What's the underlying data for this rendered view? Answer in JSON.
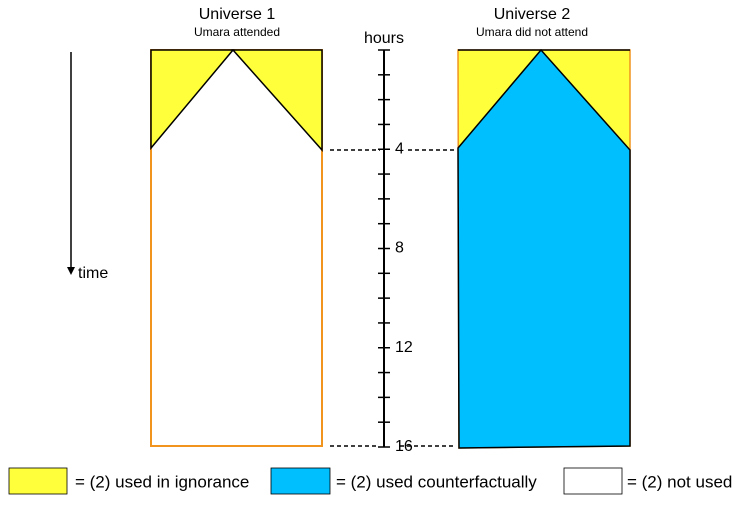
{
  "universes": [
    {
      "title": "Universe 1",
      "subtitle": "Umara attended"
    },
    {
      "title": "Universe 2",
      "subtitle": "Umara did not attend"
    }
  ],
  "axis": {
    "label": "hours",
    "tick_labels": [
      "4",
      "8",
      "12",
      "16"
    ]
  },
  "time_label": "time",
  "legend": [
    {
      "label": "= (2) used in ignorance"
    },
    {
      "label": "= (2) used counterfactually"
    },
    {
      "label": "= (2) not used"
    }
  ]
}
